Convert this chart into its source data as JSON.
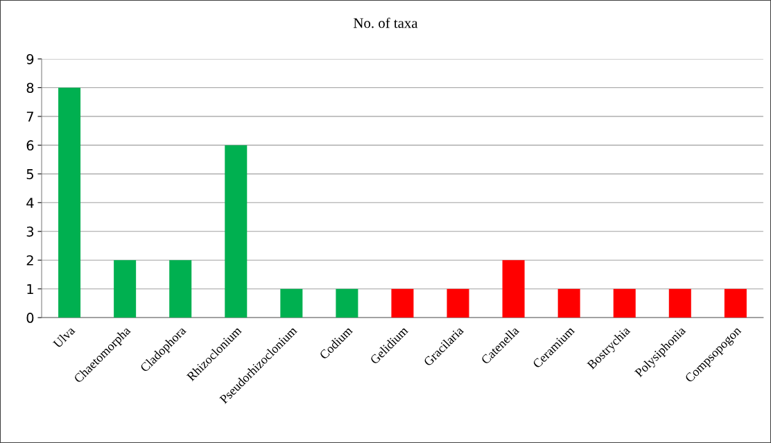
{
  "chart_data": {
    "type": "bar",
    "title": "No. of taxa",
    "categories": [
      "Ulva",
      "Chaetomorpha",
      "Cladophora",
      "Rhizoclonium",
      "Pseudorhizoclonium",
      "Codium",
      "Gelidium",
      "Gracilaria",
      "Catenella",
      "Ceramium",
      "Bostrychia",
      "Polysiphonia",
      "Compsopogon"
    ],
    "values": [
      8,
      2,
      2,
      6,
      1,
      1,
      1,
      1,
      2,
      1,
      1,
      1,
      1
    ],
    "colors": [
      "#00b050",
      "#00b050",
      "#00b050",
      "#00b050",
      "#00b050",
      "#00b050",
      "#ff0000",
      "#ff0000",
      "#ff0000",
      "#ff0000",
      "#ff0000",
      "#ff0000",
      "#ff0000"
    ],
    "ylim": [
      0,
      9
    ],
    "yticks": [
      0,
      1,
      2,
      3,
      4,
      5,
      6,
      7,
      8,
      9
    ],
    "grid": "y"
  }
}
